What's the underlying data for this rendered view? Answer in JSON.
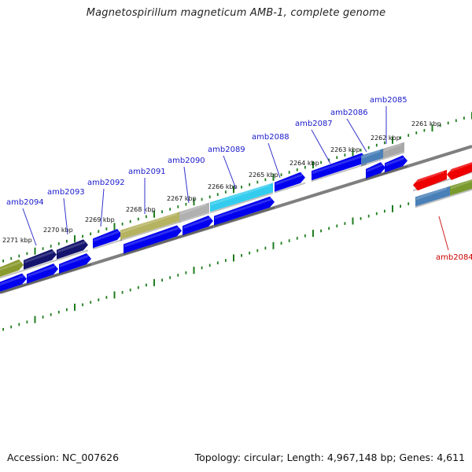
{
  "title": "Magnetospirillum magneticum AMB-1, complete genome",
  "accession_label": "Accession: NC_007626",
  "topology_label": "Topology: circular; Length: 4,967,148 bp; Genes: 4,611",
  "colors": {
    "backbone": "#7f7f7f",
    "tick": "#1e7d1e",
    "label_blue": "#1a1acc",
    "label_red": "#cc0000",
    "leader_blue": "#3333cc",
    "leader_red": "#cc2222"
  },
  "kbp_ticks": [
    {
      "kbp": 2261,
      "label": "2261 kbp"
    },
    {
      "kbp": 2262,
      "label": "2262 kbp"
    },
    {
      "kbp": 2263,
      "label": "2263 kbp"
    },
    {
      "kbp": 2264,
      "label": "2264 kbp"
    },
    {
      "kbp": 2265,
      "label": "2265 kbp"
    },
    {
      "kbp": 2266,
      "label": "2266 kbp"
    },
    {
      "kbp": 2267,
      "label": "2267 kbp"
    },
    {
      "kbp": 2268,
      "label": "2268 kbp"
    },
    {
      "kbp": 2269,
      "label": "2269 kbp"
    },
    {
      "kbp": 2270,
      "label": "2270 kbp"
    },
    {
      "kbp": 2271,
      "label": "2271 kbp"
    }
  ],
  "gene_labels": [
    {
      "name": "amb2084",
      "color": "red"
    },
    {
      "name": "amb2085",
      "color": "blue"
    },
    {
      "name": "amb2086",
      "color": "blue"
    },
    {
      "name": "amb2087",
      "color": "blue"
    },
    {
      "name": "amb2088",
      "color": "blue"
    },
    {
      "name": "amb2089",
      "color": "blue"
    },
    {
      "name": "amb2090",
      "color": "blue"
    },
    {
      "name": "amb2091",
      "color": "blue"
    },
    {
      "name": "amb2092",
      "color": "blue"
    },
    {
      "name": "amb2093",
      "color": "blue"
    },
    {
      "name": "amb2094",
      "color": "blue"
    }
  ],
  "features": [
    {
      "row": "top",
      "color": "#8a9a2e"
    },
    {
      "row": "top",
      "color": "#14146e"
    },
    {
      "row": "top",
      "color": "#14146e"
    },
    {
      "row": "top",
      "color": "#0000ee"
    },
    {
      "row": "top",
      "color": "#b5b360"
    },
    {
      "row": "top",
      "color": "#b0b0b0"
    },
    {
      "row": "top",
      "color": "#33ccee"
    },
    {
      "row": "top",
      "color": "#0000ee"
    },
    {
      "row": "top",
      "color": "#0000ee"
    },
    {
      "row": "top",
      "color": "#4a80b8"
    },
    {
      "row": "top",
      "color": "#a8a8a8"
    },
    {
      "row": "bottom",
      "color": "#0000ee"
    },
    {
      "row": "bottom",
      "color": "#0000ee"
    },
    {
      "row": "bottom",
      "color": "#0000ee"
    },
    {
      "row": "bottom",
      "color": "#0000ee"
    },
    {
      "row": "bottom",
      "color": "#0000ee"
    },
    {
      "row": "bottom",
      "color": "#0000ee"
    },
    {
      "row": "bottom",
      "color": "#0000ee"
    },
    {
      "row": "bottom",
      "color": "#0000ee"
    },
    {
      "row": "right",
      "color": "#ee0000"
    },
    {
      "row": "right",
      "color": "#ee0000"
    },
    {
      "row": "right2",
      "color": "#4a80b8"
    },
    {
      "row": "right2",
      "color": "#7a9a2e"
    }
  ]
}
